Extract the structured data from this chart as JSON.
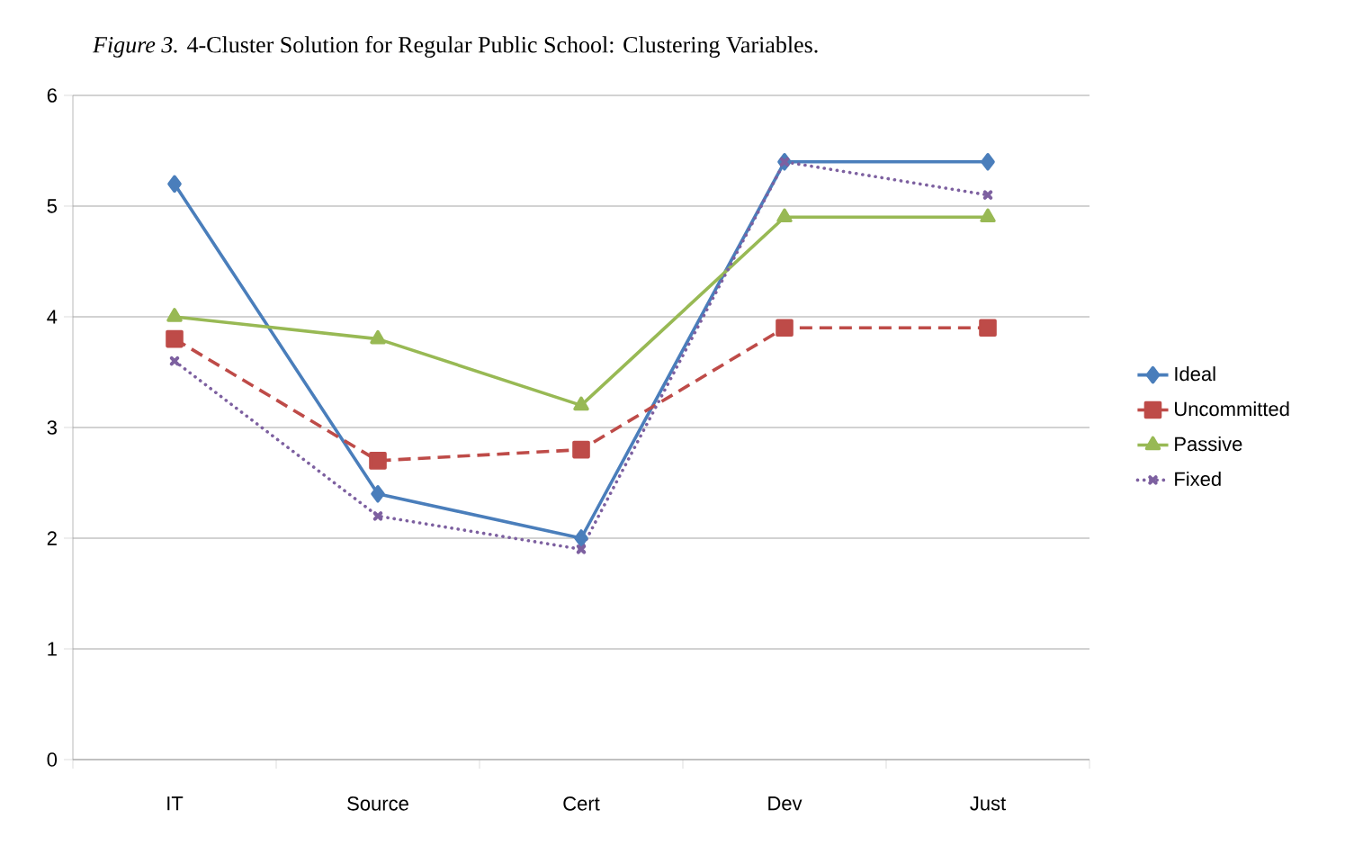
{
  "chart_data": {
    "type": "line",
    "title": "*Figure 3.* 4-Cluster Solution for Regular Public School: Clustering Variables.",
    "categories": [
      "IT",
      "Source",
      "Cert",
      "Dev",
      "Just"
    ],
    "series": [
      {
        "name": "Ideal",
        "color": "#4a7ebb",
        "values": [
          5.2,
          2.4,
          2.0,
          5.4,
          5.4
        ],
        "marker": "diamond",
        "line_style": "solid"
      },
      {
        "name": "Uncommitted",
        "color": "#be4b48",
        "values": [
          3.8,
          2.7,
          2.8,
          3.9,
          3.9
        ],
        "marker": "square",
        "line_style": "dashed"
      },
      {
        "name": "Passive",
        "color": "#98b954",
        "values": [
          4.0,
          3.8,
          3.2,
          4.9,
          4.9
        ],
        "marker": "triangle",
        "line_style": "solid"
      },
      {
        "name": "Fixed",
        "color": "#7d60a0",
        "values": [
          3.6,
          2.2,
          1.9,
          5.4,
          5.1
        ],
        "marker": "cross",
        "line_style": "dotted"
      }
    ],
    "ylim": [
      0,
      6
    ],
    "yticks": [
      0,
      1,
      2,
      3,
      4,
      5,
      6
    ],
    "grid": "y",
    "legend": "right"
  }
}
